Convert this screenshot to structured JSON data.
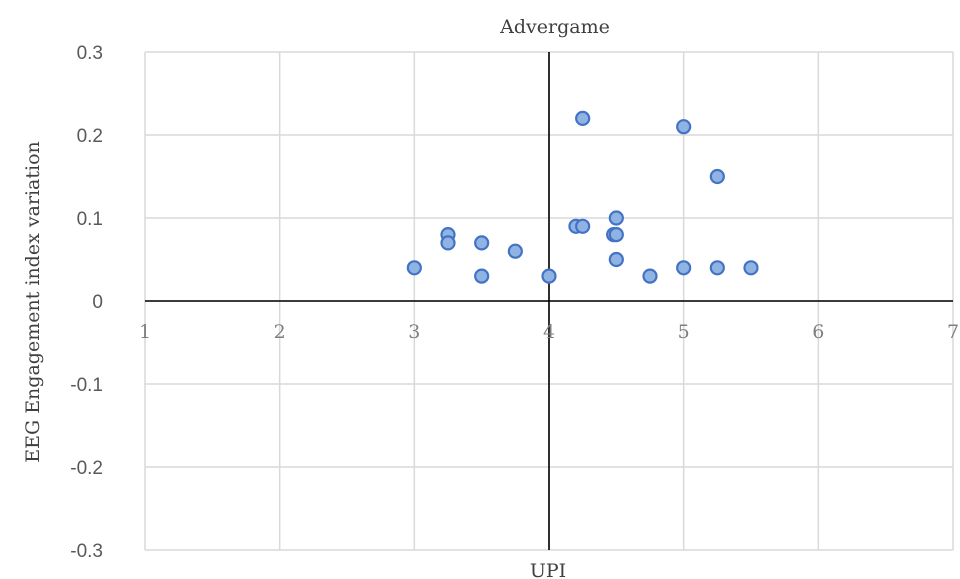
{
  "chart_data": {
    "type": "scatter",
    "title": "Advergame",
    "xlabel": "UPI",
    "ylabel": "EEG Engagement index variation",
    "xlim": [
      1,
      7
    ],
    "ylim": [
      -0.3,
      0.3
    ],
    "x_ticks": [
      "1",
      "2",
      "3",
      "4",
      "5",
      "6",
      "7"
    ],
    "y_ticks": [
      "0.3",
      "0.2",
      "0.1",
      "0",
      "-0.1",
      "-0.2",
      "-0.3"
    ],
    "grid": true,
    "axis_crossing": {
      "x": 4,
      "y": 0
    },
    "marker_fill": "#8fb4e3",
    "marker_edge": "#4472c4",
    "grid_color": "#d9d9d9",
    "axis_color": "#000000",
    "points": [
      {
        "x": 3.0,
        "y": 0.04
      },
      {
        "x": 3.25,
        "y": 0.08
      },
      {
        "x": 3.25,
        "y": 0.07
      },
      {
        "x": 3.5,
        "y": 0.07
      },
      {
        "x": 3.5,
        "y": 0.03
      },
      {
        "x": 3.75,
        "y": 0.06
      },
      {
        "x": 4.0,
        "y": 0.03
      },
      {
        "x": 4.2,
        "y": 0.09
      },
      {
        "x": 4.25,
        "y": 0.09
      },
      {
        "x": 4.25,
        "y": 0.22
      },
      {
        "x": 4.48,
        "y": 0.08
      },
      {
        "x": 4.5,
        "y": 0.08
      },
      {
        "x": 4.5,
        "y": 0.1
      },
      {
        "x": 4.5,
        "y": 0.05
      },
      {
        "x": 4.75,
        "y": 0.03
      },
      {
        "x": 5.0,
        "y": 0.21
      },
      {
        "x": 5.0,
        "y": 0.04
      },
      {
        "x": 5.25,
        "y": 0.15
      },
      {
        "x": 5.25,
        "y": 0.04
      },
      {
        "x": 5.5,
        "y": 0.04
      }
    ]
  }
}
